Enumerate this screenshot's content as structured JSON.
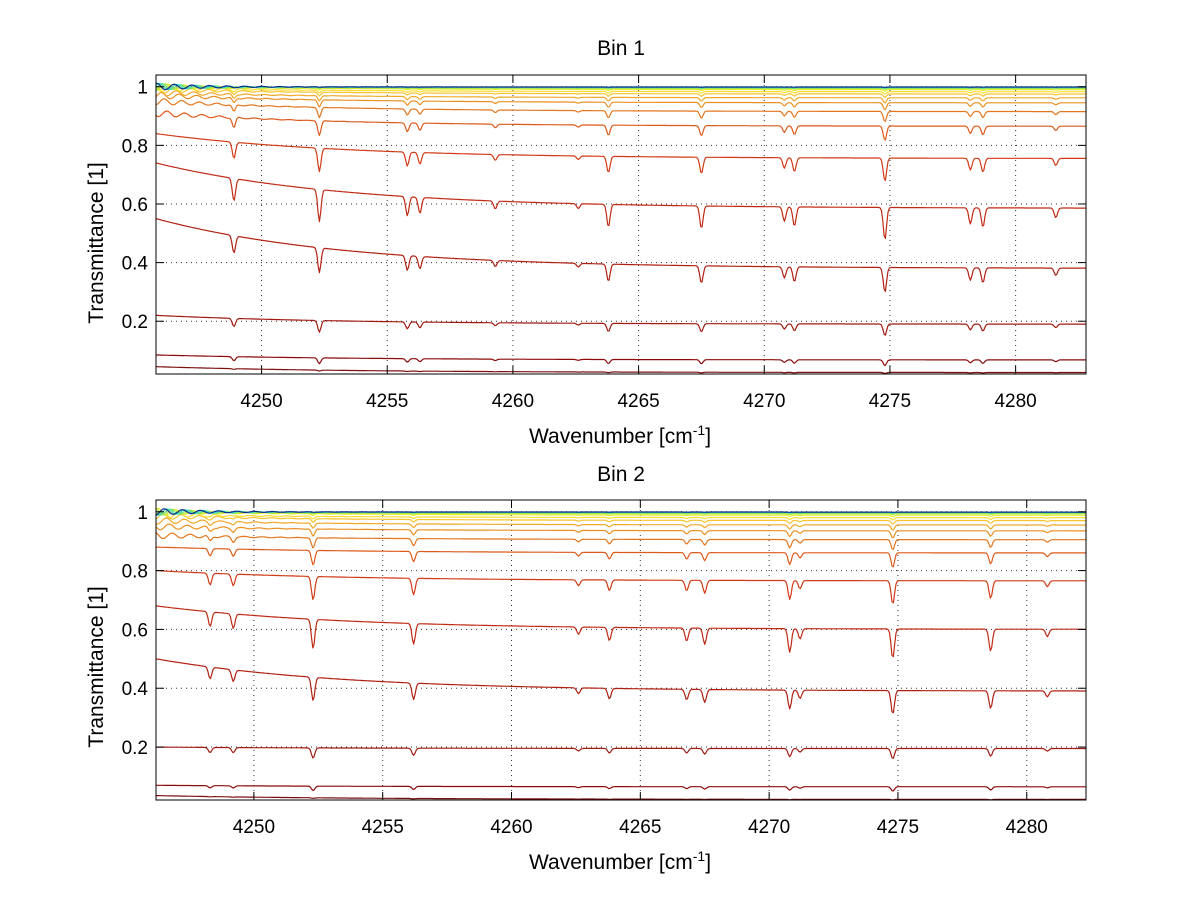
{
  "figure": {
    "xlabel_main": "Wavenumber [cm",
    "xlabel_sup": "-1",
    "xlabel_close": "]",
    "ylabel": "Transmittance [1]"
  },
  "chart_data": [
    {
      "type": "line",
      "title": "Bin 1",
      "xlabel": "Wavenumber [cm-1]",
      "ylabel": "Transmittance [1]",
      "xlim": [
        4245.8,
        4282.8
      ],
      "ylim": [
        0.02,
        1.04
      ],
      "xticks": [
        4250,
        4255,
        4260,
        4265,
        4270,
        4275,
        4280
      ],
      "xtick_labels": [
        "4250",
        "4255",
        "4260",
        "4265",
        "4270",
        "4275",
        "4280"
      ],
      "yticks": [
        0.2,
        0.4,
        0.6,
        0.8,
        1.0
      ],
      "ytick_labels": [
        "0.2",
        "0.4",
        "0.6",
        "0.8",
        "1"
      ],
      "grid": true,
      "line_positions": [
        4248.9,
        4252.3,
        4255.8,
        4256.3,
        4259.3,
        4262.6,
        4263.8,
        4267.5,
        4270.8,
        4271.2,
        4274.8,
        4278.2,
        4278.7,
        4281.6
      ],
      "line_strengths": [
        0.7,
        1.0,
        0.6,
        0.5,
        0.25,
        0.15,
        0.7,
        0.7,
        0.45,
        0.6,
        1.0,
        0.5,
        0.6,
        0.3
      ],
      "series": [
        {
          "color": "#8b0a0a",
          "start": 0.085,
          "end": 0.068,
          "depth": 0.02
        },
        {
          "color": "#7e1010",
          "start": 0.045,
          "end": 0.025,
          "depth": 0.003
        },
        {
          "color": "#a01a10",
          "start": 0.22,
          "end": 0.19,
          "depth": 0.04
        },
        {
          "color": "#b02012",
          "start": 0.55,
          "end": 0.38,
          "depth": 0.085
        },
        {
          "color": "#c02a14",
          "start": 0.74,
          "end": 0.585,
          "depth": 0.11
        },
        {
          "color": "#d03a16",
          "start": 0.84,
          "end": 0.755,
          "depth": 0.08
        },
        {
          "color": "#dd5a1a",
          "start": 0.91,
          "end": 0.865,
          "depth": 0.05
        },
        {
          "color": "#e3761e",
          "start": 0.95,
          "end": 0.915,
          "depth": 0.035
        },
        {
          "color": "#e99022",
          "start": 0.97,
          "end": 0.945,
          "depth": 0.025
        },
        {
          "color": "#f0a828",
          "start": 0.98,
          "end": 0.962,
          "depth": 0.018
        },
        {
          "color": "#f6c42e",
          "start": 0.99,
          "end": 0.975,
          "depth": 0.012
        },
        {
          "color": "#fadc34",
          "start": 0.995,
          "end": 0.983,
          "depth": 0.008
        },
        {
          "color": "#e6ee30",
          "start": 1.0,
          "end": 0.99,
          "depth": 0.005
        },
        {
          "color": "#b4ea3c",
          "start": 1.0,
          "end": 0.994,
          "depth": 0.003
        },
        {
          "color": "#6ee27a",
          "start": 1.0,
          "end": 0.996,
          "depth": 0.002
        },
        {
          "color": "#30d8c8",
          "start": 1.0,
          "end": 0.998,
          "depth": 0.0015
        },
        {
          "color": "#0a2a8c",
          "start": 1.0,
          "end": 0.999,
          "depth": 0.001
        }
      ]
    },
    {
      "type": "line",
      "title": "Bin 2",
      "xlabel": "Wavenumber [cm-1]",
      "ylabel": "Transmittance [1]",
      "xlim": [
        4246.2,
        4282.3
      ],
      "ylim": [
        0.02,
        1.04
      ],
      "xticks": [
        4250,
        4255,
        4260,
        4265,
        4270,
        4275,
        4280
      ],
      "xtick_labels": [
        "4250",
        "4255",
        "4260",
        "4265",
        "4270",
        "4275",
        "4280"
      ],
      "yticks": [
        0.2,
        0.4,
        0.6,
        0.8,
        1.0
      ],
      "ytick_labels": [
        "0.2",
        "0.4",
        "0.6",
        "0.8",
        "1"
      ],
      "grid": true,
      "line_positions": [
        4248.3,
        4249.2,
        4252.3,
        4256.2,
        4262.6,
        4263.8,
        4266.8,
        4267.5,
        4270.8,
        4271.2,
        4274.8,
        4278.6,
        4280.8
      ],
      "line_strengths": [
        0.5,
        0.5,
        1.0,
        0.7,
        0.25,
        0.45,
        0.45,
        0.55,
        0.8,
        0.35,
        1.0,
        0.75,
        0.25
      ],
      "series": [
        {
          "color": "#8b0a0a",
          "start": 0.07,
          "end": 0.065,
          "depth": 0.015
        },
        {
          "color": "#7e1010",
          "start": 0.035,
          "end": 0.022,
          "depth": 0.002
        },
        {
          "color": "#a01a10",
          "start": 0.2,
          "end": 0.195,
          "depth": 0.035
        },
        {
          "color": "#b02012",
          "start": 0.5,
          "end": 0.39,
          "depth": 0.08
        },
        {
          "color": "#c02a14",
          "start": 0.68,
          "end": 0.6,
          "depth": 0.1
        },
        {
          "color": "#d03a16",
          "start": 0.8,
          "end": 0.765,
          "depth": 0.08
        },
        {
          "color": "#dd5a1a",
          "start": 0.88,
          "end": 0.86,
          "depth": 0.05
        },
        {
          "color": "#e3761e",
          "start": 0.92,
          "end": 0.905,
          "depth": 0.035
        },
        {
          "color": "#e99022",
          "start": 0.95,
          "end": 0.935,
          "depth": 0.025
        },
        {
          "color": "#f0a828",
          "start": 0.97,
          "end": 0.955,
          "depth": 0.018
        },
        {
          "color": "#f6c42e",
          "start": 0.985,
          "end": 0.97,
          "depth": 0.012
        },
        {
          "color": "#fadc34",
          "start": 0.99,
          "end": 0.98,
          "depth": 0.008
        },
        {
          "color": "#e6ee30",
          "start": 1.0,
          "end": 0.988,
          "depth": 0.005
        },
        {
          "color": "#b4ea3c",
          "start": 1.0,
          "end": 0.993,
          "depth": 0.003
        },
        {
          "color": "#6ee27a",
          "start": 1.0,
          "end": 0.996,
          "depth": 0.002
        },
        {
          "color": "#30d8c8",
          "start": 1.0,
          "end": 0.998,
          "depth": 0.0015
        },
        {
          "color": "#0a2a8c",
          "start": 1.0,
          "end": 0.999,
          "depth": 0.001
        }
      ]
    }
  ]
}
